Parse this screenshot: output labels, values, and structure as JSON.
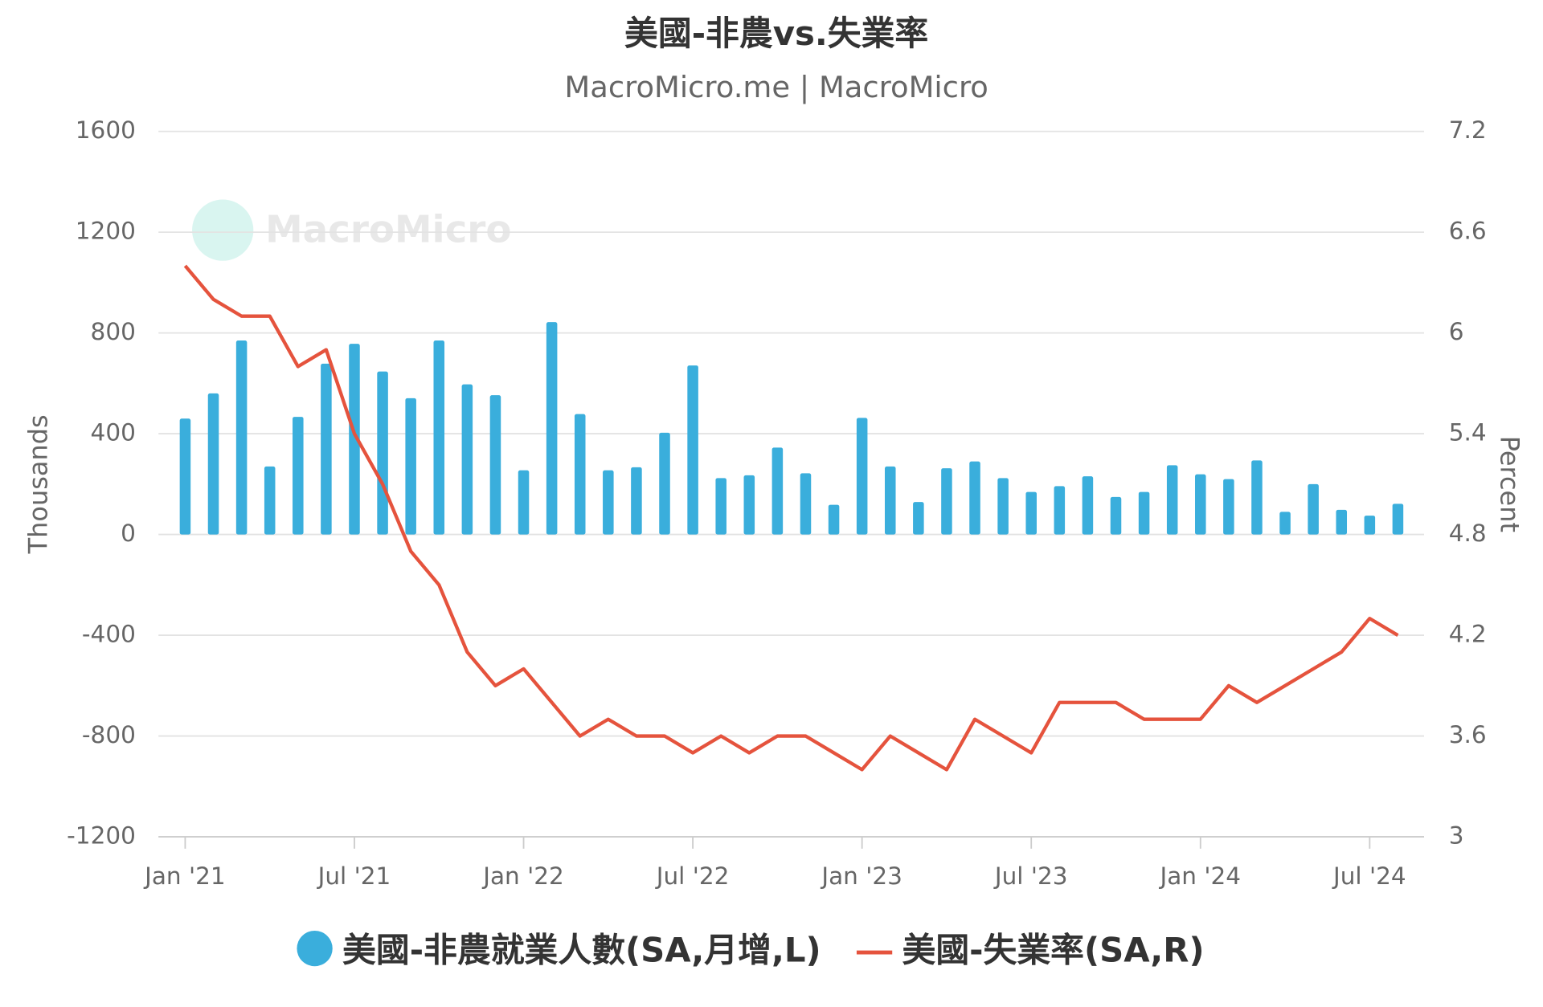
{
  "chart_data": {
    "type": "bar-line",
    "title": "美國-非農vs.失業率",
    "subtitle": "MacroMicro.me | MacroMicro",
    "watermark": "MacroMicro",
    "y_label": "Thousands",
    "y2_label": "Percent",
    "categories": [
      "Jan '21",
      null,
      null,
      null,
      null,
      null,
      "Jul '21",
      null,
      null,
      null,
      null,
      null,
      "Jan '22",
      null,
      null,
      null,
      null,
      null,
      "Jul '22",
      null,
      null,
      null,
      null,
      null,
      "Jan '23",
      null,
      null,
      null,
      null,
      null,
      "Jul '23",
      null,
      null,
      null,
      null,
      null,
      "Jan '24",
      null,
      null,
      null,
      null,
      null,
      "Jul '24",
      null
    ],
    "ylim": [
      -1200,
      1600
    ],
    "yticks": [
      -1200,
      -800,
      -400,
      0,
      400,
      800,
      1200,
      1600
    ],
    "y2lim": [
      3,
      7.2
    ],
    "y2ticks": [
      3,
      3.6,
      4.2,
      4.8,
      5.4,
      6,
      6.6,
      7.2
    ],
    "grid": true,
    "series": [
      {
        "name": "美國-非農就業人數(SA,月增,L)",
        "type": "bar",
        "color": "#3aaedc",
        "values": [
          460,
          560,
          770,
          270,
          467,
          678,
          757,
          647,
          541,
          770,
          596,
          553,
          255,
          843,
          478,
          255,
          267,
          404,
          671,
          224,
          235,
          345,
          243,
          118,
          463,
          270,
          129,
          263,
          290,
          224,
          169,
          192,
          231,
          149,
          169,
          275,
          239,
          220,
          294,
          90,
          200,
          98,
          75,
          122
        ]
      },
      {
        "name": "美國-失業率(SA,R)",
        "type": "line",
        "axis": "y2",
        "color": "#e5533d",
        "values": [
          6.4,
          6.2,
          6.1,
          6.1,
          5.8,
          5.9,
          5.4,
          5.1,
          4.7,
          4.5,
          4.1,
          3.9,
          4.0,
          3.8,
          3.6,
          3.7,
          3.6,
          3.6,
          3.5,
          3.6,
          3.5,
          3.6,
          3.6,
          3.5,
          3.4,
          3.6,
          3.5,
          3.4,
          3.7,
          3.6,
          3.5,
          3.8,
          3.8,
          3.8,
          3.7,
          3.7,
          3.7,
          3.9,
          3.8,
          3.9,
          4.0,
          4.1,
          4.3,
          4.2
        ]
      }
    ]
  }
}
